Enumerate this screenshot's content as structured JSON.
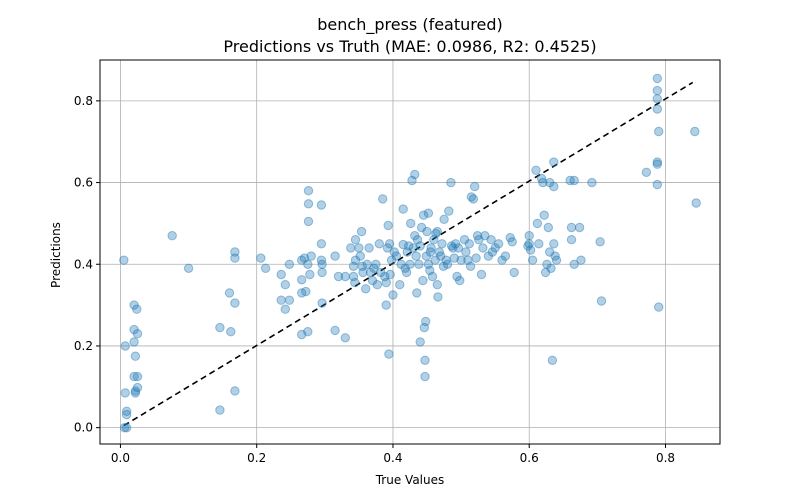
{
  "chart_data": {
    "type": "scatter",
    "title": "bench_press (featured)",
    "subtitle": "Predictions vs Truth (MAE: 0.0986, R2: 0.4525)",
    "xlabel": "True Values",
    "ylabel": "Predictions",
    "xlim": [
      -0.03,
      0.88
    ],
    "ylim": [
      -0.04,
      0.9
    ],
    "x_ticks": [
      "0.0",
      "0.2",
      "0.4",
      "0.6",
      "0.8"
    ],
    "y_ticks": [
      "0.0",
      "0.2",
      "0.4",
      "0.6",
      "0.8"
    ],
    "grid": true,
    "point_color": "#1f77b4",
    "reference_line": {
      "style": "dashed",
      "color": "#000000",
      "from": [
        0.005,
        0.005
      ],
      "to": [
        0.84,
        0.845
      ]
    },
    "points": [
      [
        0.005,
        0.41
      ],
      [
        0.007,
        0.2
      ],
      [
        0.007,
        0.085
      ],
      [
        0.009,
        0.04
      ],
      [
        0.009,
        0.032
      ],
      [
        0.006,
        0.0
      ],
      [
        0.009,
        0.0
      ],
      [
        0.02,
        0.3
      ],
      [
        0.024,
        0.29
      ],
      [
        0.02,
        0.24
      ],
      [
        0.025,
        0.23
      ],
      [
        0.02,
        0.21
      ],
      [
        0.022,
        0.175
      ],
      [
        0.02,
        0.125
      ],
      [
        0.025,
        0.125
      ],
      [
        0.022,
        0.085
      ],
      [
        0.025,
        0.098
      ],
      [
        0.022,
        0.09
      ],
      [
        0.076,
        0.47
      ],
      [
        0.1,
        0.39
      ],
      [
        0.146,
        0.245
      ],
      [
        0.146,
        0.043
      ],
      [
        0.16,
        0.33
      ],
      [
        0.162,
        0.235
      ],
      [
        0.168,
        0.305
      ],
      [
        0.168,
        0.43
      ],
      [
        0.168,
        0.415
      ],
      [
        0.168,
        0.09
      ],
      [
        0.206,
        0.415
      ],
      [
        0.213,
        0.39
      ],
      [
        0.236,
        0.375
      ],
      [
        0.236,
        0.312
      ],
      [
        0.242,
        0.35
      ],
      [
        0.242,
        0.29
      ],
      [
        0.248,
        0.4
      ],
      [
        0.248,
        0.312
      ],
      [
        0.266,
        0.41
      ],
      [
        0.266,
        0.362
      ],
      [
        0.266,
        0.33
      ],
      [
        0.266,
        0.228
      ],
      [
        0.27,
        0.415
      ],
      [
        0.276,
        0.58
      ],
      [
        0.276,
        0.548
      ],
      [
        0.276,
        0.505
      ],
      [
        0.28,
        0.42
      ],
      [
        0.275,
        0.4
      ],
      [
        0.278,
        0.375
      ],
      [
        0.272,
        0.333
      ],
      [
        0.275,
        0.235
      ],
      [
        0.295,
        0.545
      ],
      [
        0.295,
        0.45
      ],
      [
        0.295,
        0.41
      ],
      [
        0.296,
        0.4
      ],
      [
        0.296,
        0.38
      ],
      [
        0.296,
        0.305
      ],
      [
        0.315,
        0.42
      ],
      [
        0.315,
        0.238
      ],
      [
        0.32,
        0.37
      ],
      [
        0.33,
        0.37
      ],
      [
        0.33,
        0.22
      ],
      [
        0.338,
        0.44
      ],
      [
        0.342,
        0.395
      ],
      [
        0.342,
        0.37
      ],
      [
        0.344,
        0.355
      ],
      [
        0.345,
        0.46
      ],
      [
        0.345,
        0.41
      ],
      [
        0.35,
        0.44
      ],
      [
        0.352,
        0.42
      ],
      [
        0.354,
        0.48
      ],
      [
        0.355,
        0.395
      ],
      [
        0.356,
        0.38
      ],
      [
        0.36,
        0.34
      ],
      [
        0.362,
        0.4
      ],
      [
        0.365,
        0.44
      ],
      [
        0.367,
        0.38
      ],
      [
        0.37,
        0.36
      ],
      [
        0.372,
        0.39
      ],
      [
        0.375,
        0.4
      ],
      [
        0.377,
        0.35
      ],
      [
        0.38,
        0.45
      ],
      [
        0.382,
        0.38
      ],
      [
        0.385,
        0.56
      ],
      [
        0.388,
        0.37
      ],
      [
        0.39,
        0.3
      ],
      [
        0.39,
        0.355
      ],
      [
        0.392,
        0.44
      ],
      [
        0.393,
        0.495
      ],
      [
        0.394,
        0.18
      ],
      [
        0.395,
        0.45
      ],
      [
        0.396,
        0.375
      ],
      [
        0.398,
        0.41
      ],
      [
        0.4,
        0.325
      ],
      [
        0.402,
        0.43
      ],
      [
        0.405,
        0.42
      ],
      [
        0.41,
        0.35
      ],
      [
        0.412,
        0.4
      ],
      [
        0.415,
        0.535
      ],
      [
        0.415,
        0.448
      ],
      [
        0.418,
        0.39
      ],
      [
        0.42,
        0.38
      ],
      [
        0.421,
        0.43
      ],
      [
        0.423,
        0.445
      ],
      [
        0.425,
        0.4
      ],
      [
        0.426,
        0.5
      ],
      [
        0.428,
        0.605
      ],
      [
        0.43,
        0.44
      ],
      [
        0.432,
        0.47
      ],
      [
        0.432,
        0.62
      ],
      [
        0.434,
        0.42
      ],
      [
        0.435,
        0.33
      ],
      [
        0.436,
        0.46
      ],
      [
        0.438,
        0.4
      ],
      [
        0.44,
        0.21
      ],
      [
        0.44,
        0.445
      ],
      [
        0.442,
        0.49
      ],
      [
        0.444,
        0.36
      ],
      [
        0.445,
        0.52
      ],
      [
        0.446,
        0.245
      ],
      [
        0.447,
        0.165
      ],
      [
        0.447,
        0.125
      ],
      [
        0.448,
        0.26
      ],
      [
        0.449,
        0.42
      ],
      [
        0.45,
        0.48
      ],
      [
        0.452,
        0.4
      ],
      [
        0.452,
        0.525
      ],
      [
        0.454,
        0.385
      ],
      [
        0.455,
        0.43
      ],
      [
        0.456,
        0.44
      ],
      [
        0.458,
        0.37
      ],
      [
        0.46,
        0.46
      ],
      [
        0.462,
        0.41
      ],
      [
        0.463,
        0.475
      ],
      [
        0.465,
        0.48
      ],
      [
        0.465,
        0.35
      ],
      [
        0.466,
        0.32
      ],
      [
        0.468,
        0.43
      ],
      [
        0.47,
        0.42
      ],
      [
        0.472,
        0.45
      ],
      [
        0.474,
        0.395
      ],
      [
        0.475,
        0.51
      ],
      [
        0.478,
        0.41
      ],
      [
        0.48,
        0.4
      ],
      [
        0.482,
        0.53
      ],
      [
        0.485,
        0.6
      ],
      [
        0.486,
        0.445
      ],
      [
        0.488,
        0.44
      ],
      [
        0.49,
        0.415
      ],
      [
        0.492,
        0.45
      ],
      [
        0.494,
        0.37
      ],
      [
        0.496,
        0.44
      ],
      [
        0.498,
        0.36
      ],
      [
        0.5,
        0.41
      ],
      [
        0.505,
        0.46
      ],
      [
        0.507,
        0.43
      ],
      [
        0.51,
        0.41
      ],
      [
        0.512,
        0.45
      ],
      [
        0.514,
        0.395
      ],
      [
        0.515,
        0.565
      ],
      [
        0.518,
        0.56
      ],
      [
        0.52,
        0.59
      ],
      [
        0.522,
        0.415
      ],
      [
        0.524,
        0.47
      ],
      [
        0.526,
        0.46
      ],
      [
        0.53,
        0.375
      ],
      [
        0.532,
        0.44
      ],
      [
        0.535,
        0.47
      ],
      [
        0.54,
        0.42
      ],
      [
        0.544,
        0.46
      ],
      [
        0.546,
        0.43
      ],
      [
        0.55,
        0.44
      ],
      [
        0.555,
        0.45
      ],
      [
        0.56,
        0.41
      ],
      [
        0.565,
        0.42
      ],
      [
        0.572,
        0.465
      ],
      [
        0.575,
        0.455
      ],
      [
        0.578,
        0.38
      ],
      [
        0.598,
        0.445
      ],
      [
        0.6,
        0.45
      ],
      [
        0.6,
        0.47
      ],
      [
        0.602,
        0.435
      ],
      [
        0.605,
        0.41
      ],
      [
        0.61,
        0.63
      ],
      [
        0.612,
        0.5
      ],
      [
        0.614,
        0.45
      ],
      [
        0.618,
        0.61
      ],
      [
        0.62,
        0.6
      ],
      [
        0.622,
        0.52
      ],
      [
        0.624,
        0.38
      ],
      [
        0.626,
        0.4
      ],
      [
        0.628,
        0.49
      ],
      [
        0.63,
        0.6
      ],
      [
        0.63,
        0.43
      ],
      [
        0.632,
        0.39
      ],
      [
        0.634,
        0.165
      ],
      [
        0.636,
        0.65
      ],
      [
        0.636,
        0.59
      ],
      [
        0.636,
        0.45
      ],
      [
        0.638,
        0.42
      ],
      [
        0.64,
        0.41
      ],
      [
        0.66,
        0.605
      ],
      [
        0.662,
        0.49
      ],
      [
        0.662,
        0.46
      ],
      [
        0.666,
        0.605
      ],
      [
        0.666,
        0.4
      ],
      [
        0.674,
        0.49
      ],
      [
        0.676,
        0.41
      ],
      [
        0.692,
        0.6
      ],
      [
        0.704,
        0.455
      ],
      [
        0.706,
        0.31
      ],
      [
        0.772,
        0.625
      ],
      [
        0.788,
        0.855
      ],
      [
        0.788,
        0.825
      ],
      [
        0.788,
        0.805
      ],
      [
        0.788,
        0.78
      ],
      [
        0.79,
        0.725
      ],
      [
        0.788,
        0.65
      ],
      [
        0.788,
        0.645
      ],
      [
        0.788,
        0.595
      ],
      [
        0.79,
        0.295
      ],
      [
        0.843,
        0.725
      ],
      [
        0.845,
        0.55
      ]
    ]
  }
}
